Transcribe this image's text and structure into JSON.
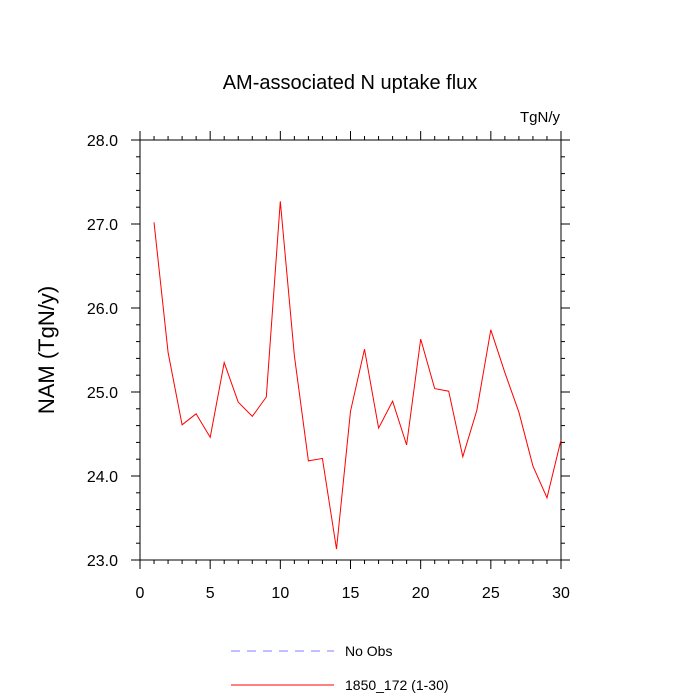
{
  "chart_data": {
    "type": "line",
    "title": "AM-associated N uptake flux",
    "units_label": "TgN/y",
    "ylabel": "NAM  (TgN/y)",
    "xlabel": "",
    "xlim": [
      0,
      30
    ],
    "ylim": [
      23.0,
      28.0
    ],
    "x_ticks": [
      0,
      5,
      10,
      15,
      20,
      25,
      30
    ],
    "x_tick_labels": [
      "0",
      "5",
      "10",
      "15",
      "20",
      "25",
      "30"
    ],
    "y_ticks": [
      23.0,
      24.0,
      25.0,
      26.0,
      27.0,
      28.0
    ],
    "y_tick_labels": [
      "23.0",
      "24.0",
      "25.0",
      "26.0",
      "27.0",
      "28.0"
    ],
    "grid": false,
    "legend_position": "bottom",
    "series": [
      {
        "name": "1850_172 (1-30)",
        "color": "#ff0000",
        "dash": "solid",
        "x": [
          1,
          2,
          3,
          4,
          5,
          6,
          7,
          8,
          9,
          10,
          11,
          12,
          13,
          14,
          15,
          16,
          17,
          18,
          19,
          20,
          21,
          22,
          23,
          24,
          25,
          26,
          27,
          28,
          29,
          30
        ],
        "values": [
          27.02,
          25.47,
          24.61,
          24.74,
          24.46,
          25.35,
          24.88,
          24.71,
          24.94,
          27.27,
          25.43,
          24.18,
          24.21,
          23.13,
          24.77,
          25.51,
          24.57,
          24.89,
          24.37,
          25.63,
          25.04,
          25.01,
          24.23,
          24.78,
          25.74,
          25.23,
          24.76,
          24.12,
          23.74,
          24.43
        ]
      }
    ],
    "legend": [
      {
        "label": "No Obs",
        "color": "#8080ff",
        "dash": "dashed"
      },
      {
        "label": "1850_172 (1-30)",
        "color": "#ff0000",
        "dash": "solid"
      }
    ]
  }
}
